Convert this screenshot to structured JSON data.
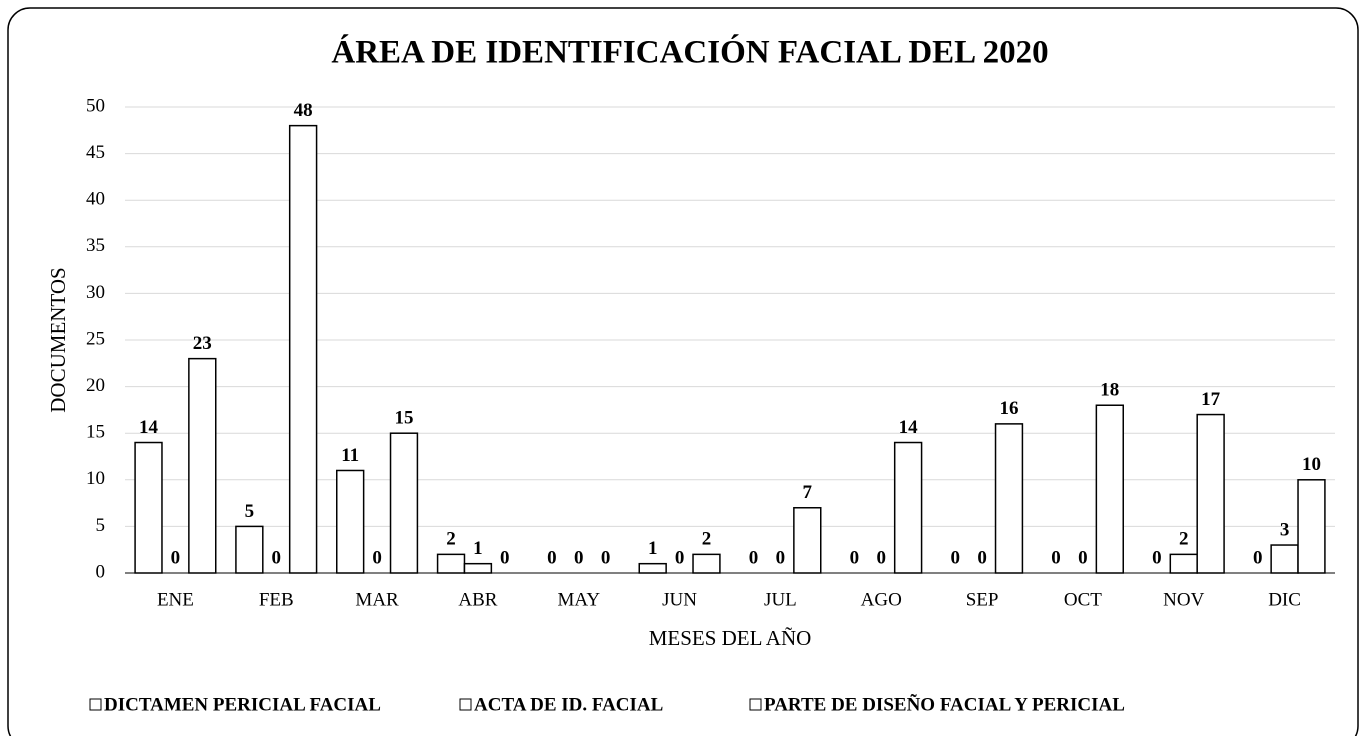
{
  "chart_data": {
    "type": "bar",
    "title": "ÁREA DE IDENTIFICACIÓN FACIAL DEL 2020",
    "x_label": "MESES DEL AÑO",
    "y_label": "DOCUMENTOS",
    "categories": [
      "ENE",
      "FEB",
      "MAR",
      "ABR",
      "MAY",
      "JUN",
      "JUL",
      "AGO",
      "SEP",
      "OCT",
      "NOV",
      "DIC"
    ],
    "series": [
      {
        "name": "DICTAMEN PERICIAL FACIAL",
        "color": "#ffffff",
        "values": [
          14,
          5,
          11,
          2,
          0,
          1,
          0,
          0,
          0,
          0,
          0,
          0
        ]
      },
      {
        "name": "ACTA DE ID. FACIAL",
        "color": "#ffffff",
        "values": [
          0,
          0,
          0,
          1,
          0,
          0,
          0,
          0,
          0,
          0,
          2,
          3
        ]
      },
      {
        "name": "PARTE DE DISEÑO FACIAL Y PERICIAL",
        "color": "#ffffff",
        "values": [
          23,
          48,
          15,
          0,
          0,
          2,
          7,
          14,
          16,
          18,
          17,
          10
        ]
      }
    ],
    "ylim": [
      0,
      50
    ],
    "yticks": [
      0,
      5,
      10,
      15,
      20,
      25,
      30,
      35,
      40,
      45,
      50
    ],
    "grid": true,
    "legend": "bottom"
  }
}
